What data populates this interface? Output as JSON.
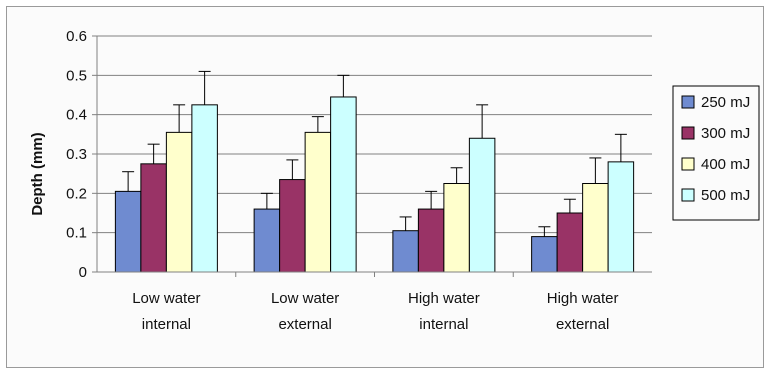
{
  "chart_data": {
    "type": "bar",
    "title": "",
    "xlabel": "",
    "ylabel": "Depth (mm)",
    "ylim": [
      0,
      0.6
    ],
    "yticks": [
      0,
      0.1,
      0.2,
      0.3,
      0.4,
      0.5,
      0.6
    ],
    "ytick_labels": [
      "0",
      "0.1",
      "0.2",
      "0.3",
      "0.4",
      "0.5",
      "0.6"
    ],
    "grid": true,
    "legend_position": "right",
    "categories": [
      [
        "Low  water",
        "internal"
      ],
      [
        "Low  water",
        "external"
      ],
      [
        "High water",
        "internal"
      ],
      [
        "High water",
        "external"
      ]
    ],
    "series": [
      {
        "name": "250 mJ",
        "color": "#6f8bd0",
        "values": [
          0.205,
          0.16,
          0.105,
          0.09
        ],
        "error": [
          0.05,
          0.04,
          0.035,
          0.025
        ]
      },
      {
        "name": "300 mJ",
        "color": "#993366",
        "values": [
          0.275,
          0.235,
          0.16,
          0.15
        ],
        "error": [
          0.05,
          0.05,
          0.045,
          0.035
        ]
      },
      {
        "name": "400 mJ",
        "color": "#ffffcc",
        "values": [
          0.355,
          0.355,
          0.225,
          0.225
        ],
        "error": [
          0.07,
          0.04,
          0.04,
          0.065
        ]
      },
      {
        "name": "500 mJ",
        "color": "#ccffff",
        "values": [
          0.425,
          0.445,
          0.34,
          0.28
        ],
        "error": [
          0.085,
          0.055,
          0.085,
          0.07
        ]
      }
    ]
  }
}
